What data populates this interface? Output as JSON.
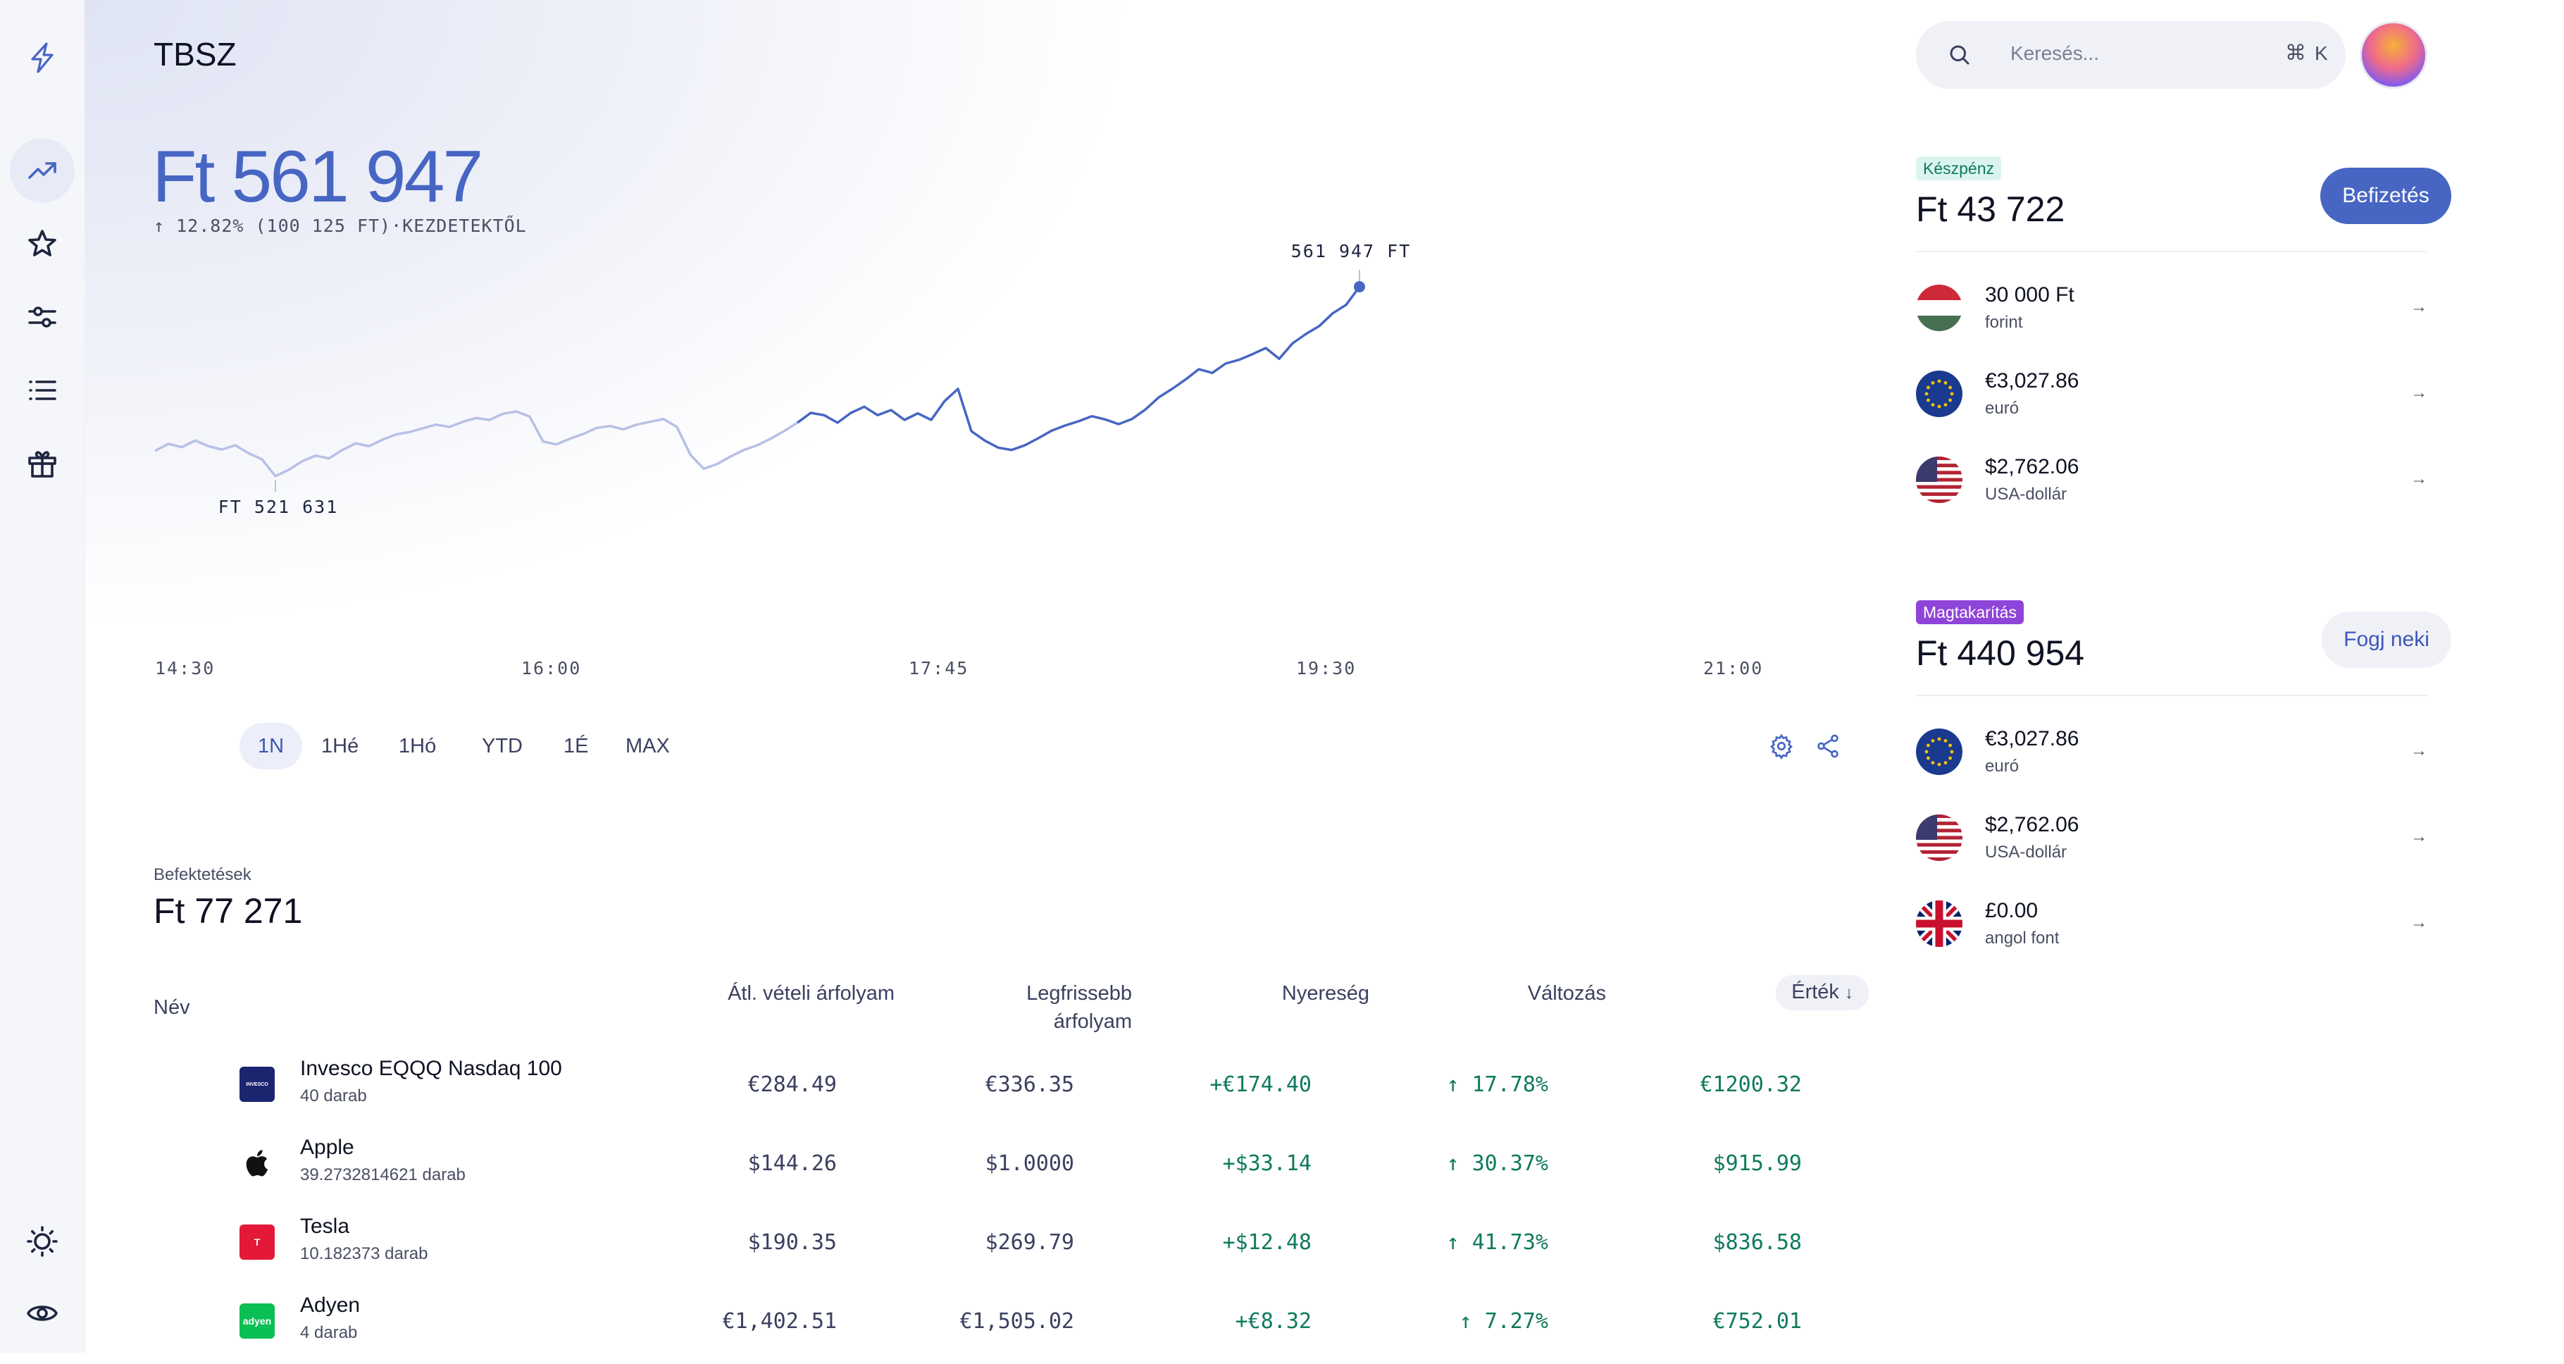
{
  "header": {
    "title": "TBSZ",
    "total": "Ft 561 947",
    "gain_text": "12.82% (100 125 FT)·KEZDETEKTŐL"
  },
  "sidebar": {
    "items": [
      {
        "icon": "bolt-logo-icon"
      },
      {
        "icon": "trending-up-icon",
        "active": true
      },
      {
        "icon": "star-icon"
      },
      {
        "icon": "sliders-icon"
      },
      {
        "icon": "list-icon"
      },
      {
        "icon": "gift-icon"
      },
      {
        "icon": "sun-icon"
      },
      {
        "icon": "eye-icon"
      }
    ]
  },
  "chart_data": {
    "type": "line",
    "high_label": "561 947 FT",
    "low_label": "FT 521 631",
    "x_ticks": [
      "14:30",
      "16:00",
      "17:45",
      "19:30",
      "21:00"
    ],
    "series": [
      {
        "values": [
          527000,
          528500,
          527800,
          529200,
          528000,
          527300,
          528200,
          526500,
          525200,
          521631,
          523000,
          524800,
          526000,
          525400,
          527200,
          528600,
          528000,
          529400,
          530500,
          531000,
          531800,
          532600,
          532100,
          533200,
          534000,
          533600,
          534900,
          535400,
          534300,
          529000,
          528400,
          529600,
          530600,
          531900,
          532300,
          531600,
          532600,
          533200,
          533800,
          532100,
          526200,
          523200,
          524200,
          525800,
          527200,
          528200,
          529600,
          531200,
          533000,
          535100,
          534600,
          533000,
          535100,
          536400,
          534600,
          535700,
          533600,
          535000,
          533600,
          537600,
          540200,
          531200,
          529200,
          527700,
          527200,
          528200,
          529700,
          531300,
          532400,
          533300,
          534400,
          533700,
          532700,
          533800,
          535800,
          538400,
          540200,
          542200,
          544400,
          543600,
          545600,
          546400,
          547600,
          548900,
          546600,
          549900,
          551900,
          553600,
          556300,
          558100,
          561947
        ]
      }
    ],
    "ylim": [
      515000,
      566000
    ],
    "colors": {
      "past": "#b7c0e6",
      "recent": "#4766c3"
    }
  },
  "ranges": [
    "1N",
    "1Hé",
    "1Hó",
    "YTD",
    "1É",
    "MAX"
  ],
  "active_range": "1N",
  "investments": {
    "label": "Befektetések",
    "total": "Ft 77 271",
    "columns": {
      "name": "Név",
      "avg_price": "Átl. vételi árfolyam",
      "latest_price_1": "Legfrissebb",
      "latest_price_2": "árfolyam",
      "profit": "Nyereség",
      "change": "Változás",
      "value": "Érték"
    },
    "rows": [
      {
        "name": "Invesco EQQQ Nasdaq 100",
        "qty": "40 darab",
        "avg": "€284.49",
        "latest": "€336.35",
        "profit": "+€174.40",
        "change": "17.78%",
        "value": "€1200.32",
        "logo": "INVESCO",
        "logo_color": "#1c2570"
      },
      {
        "name": "Apple",
        "qty": "39.2732814621 darab",
        "avg": "$144.26",
        "latest": "$1.0000",
        "profit": "+$33.14",
        "change": "30.37%",
        "value": "$915.99",
        "logo": "",
        "logo_color": "#ffffff"
      },
      {
        "name": "Tesla",
        "qty": "10.182373 darab",
        "avg": "$190.35",
        "latest": "$269.79",
        "profit": "+$12.48",
        "change": "41.73%",
        "value": "$836.58",
        "logo": "T",
        "logo_color": "#e31937"
      },
      {
        "name": "Adyen",
        "qty": "4 darab",
        "avg": "€1,402.51",
        "latest": "€1,505.02",
        "profit": "+€8.32",
        "change": "7.27%",
        "value": "€752.01",
        "logo": "adyen",
        "logo_color": "#0abf53"
      }
    ]
  },
  "search": {
    "placeholder": "Keresés...",
    "shortcut_symbol": "⌘",
    "shortcut_key": "K"
  },
  "cash": {
    "badge": "Készpénz",
    "total": "Ft 43 722",
    "button": "Befizetés",
    "currencies": [
      {
        "amount": "30 000 Ft",
        "name": "forint",
        "flag": "hu"
      },
      {
        "amount": "€3,027.86",
        "name": "euró",
        "flag": "eu"
      },
      {
        "amount": "$2,762.06",
        "name": "USA-dollár",
        "flag": "us"
      }
    ]
  },
  "savings": {
    "badge": "Magtakarítás",
    "total": "Ft 440 954",
    "button": "Fogj neki",
    "currencies": [
      {
        "amount": "€3,027.86",
        "name": "euró",
        "flag": "eu"
      },
      {
        "amount": "$2,762.06",
        "name": "USA-dollár",
        "flag": "us"
      },
      {
        "amount": "£0.00",
        "name": "angol font",
        "flag": "gb"
      }
    ]
  }
}
